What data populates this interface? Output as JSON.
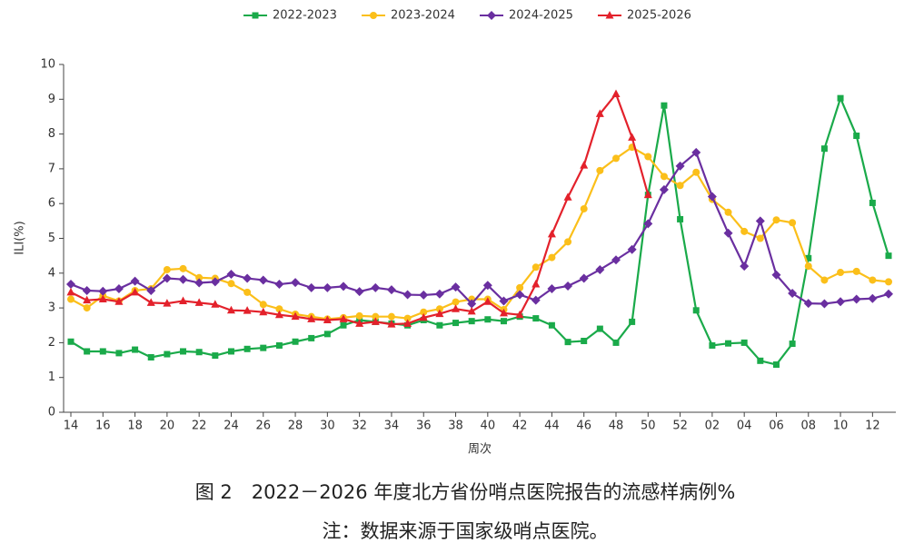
{
  "chart_data": {
    "type": "line",
    "y_label": "ILI(%)",
    "x_label": "周次",
    "caption": "图 2　2022－2026 年度北方省份哨点医院报告的流感样病例%",
    "note": "注：数据来源于国家级哨点医院。",
    "categories": [
      "14",
      null,
      "16",
      null,
      "18",
      null,
      "20",
      null,
      "22",
      null,
      "24",
      null,
      "26",
      null,
      "28",
      null,
      "30",
      null,
      "32",
      null,
      "34",
      null,
      "36",
      null,
      "38",
      null,
      "40",
      null,
      "42",
      null,
      "44",
      null,
      "46",
      null,
      "48",
      null,
      "50",
      null,
      "52",
      null,
      "02",
      null,
      "04",
      null,
      "06",
      null,
      "08",
      null,
      "10",
      null,
      "12",
      null
    ],
    "ylim": [
      0,
      10
    ],
    "yticks": [
      0,
      1,
      2,
      3,
      4,
      5,
      6,
      7,
      8,
      9,
      10
    ],
    "legend": "top",
    "series": [
      {
        "name": "2022-2023",
        "color": "#1aaa4a",
        "marker": "square",
        "values": [
          2.03,
          1.75,
          1.75,
          1.7,
          1.8,
          1.58,
          1.67,
          1.75,
          1.73,
          1.63,
          1.75,
          1.82,
          1.85,
          1.92,
          2.03,
          2.13,
          2.25,
          2.5,
          2.65,
          2.6,
          2.55,
          2.5,
          2.65,
          2.5,
          2.57,
          2.62,
          2.67,
          2.62,
          2.75,
          2.7,
          2.5,
          2.02,
          2.05,
          2.4,
          2.0,
          2.6,
          6.25,
          8.82,
          5.55,
          2.93,
          1.92,
          1.98,
          2.0,
          1.48,
          1.37,
          1.97,
          4.43,
          7.58,
          9.03,
          7.95,
          6.02,
          4.5
        ]
      },
      {
        "name": "2023-2024",
        "color": "#fbbf1a",
        "marker": "circle",
        "values": [
          3.25,
          3.0,
          3.35,
          3.2,
          3.5,
          3.55,
          4.1,
          4.13,
          3.87,
          3.85,
          3.7,
          3.45,
          3.1,
          2.97,
          2.82,
          2.75,
          2.68,
          2.72,
          2.77,
          2.75,
          2.75,
          2.7,
          2.88,
          2.97,
          3.17,
          3.25,
          3.25,
          2.95,
          3.58,
          4.17,
          4.45,
          4.9,
          5.85,
          6.95,
          7.3,
          7.62,
          7.35,
          6.78,
          6.52,
          6.9,
          6.12,
          5.75,
          5.2,
          5.0,
          5.53,
          5.45,
          4.2,
          3.8,
          4.02,
          4.05,
          3.8,
          3.75
        ]
      },
      {
        "name": "2024-2025",
        "color": "#6a2fa0",
        "marker": "diamond",
        "values": [
          3.68,
          3.5,
          3.48,
          3.55,
          3.77,
          3.5,
          3.85,
          3.82,
          3.72,
          3.75,
          3.97,
          3.85,
          3.8,
          3.68,
          3.73,
          3.58,
          3.58,
          3.62,
          3.47,
          3.58,
          3.52,
          3.38,
          3.37,
          3.4,
          3.6,
          3.12,
          3.65,
          3.2,
          3.38,
          3.22,
          3.55,
          3.63,
          3.85,
          4.1,
          4.38,
          4.68,
          5.42,
          6.4,
          7.08,
          7.47,
          6.2,
          5.15,
          4.2,
          5.5,
          3.95,
          3.42,
          3.13,
          3.12,
          3.18,
          3.25,
          3.27,
          3.4
        ]
      },
      {
        "name": "2025-2026",
        "color": "#e3212b",
        "marker": "triangle",
        "values": [
          3.45,
          3.22,
          3.25,
          3.18,
          3.45,
          3.15,
          3.13,
          3.2,
          3.15,
          3.1,
          2.93,
          2.92,
          2.88,
          2.8,
          2.75,
          2.68,
          2.65,
          2.68,
          2.55,
          2.6,
          2.53,
          2.55,
          2.72,
          2.83,
          2.97,
          2.9,
          3.18,
          2.85,
          2.8,
          3.68,
          5.12,
          6.18,
          7.1,
          8.58,
          9.15,
          7.9,
          6.25,
          null,
          null,
          null,
          null,
          null,
          null,
          null,
          null,
          null,
          null,
          null,
          null,
          null,
          null,
          null
        ]
      }
    ]
  }
}
